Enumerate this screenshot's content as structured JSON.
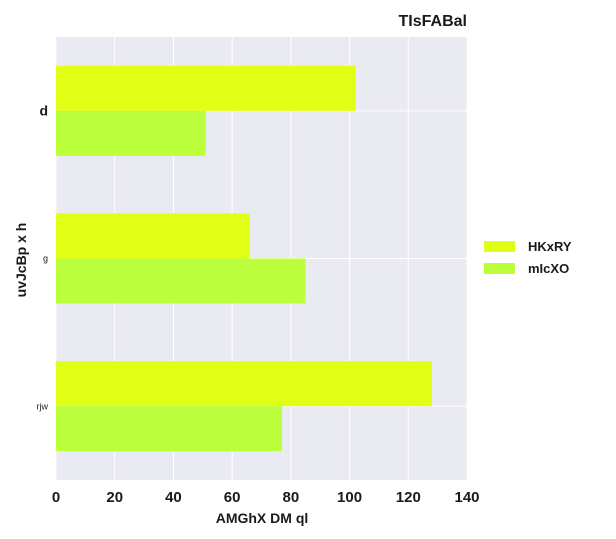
{
  "chart_data": {
    "type": "bar",
    "orientation": "horizontal",
    "title": "TIsFABal",
    "xlabel": "AMGhX DM  ql",
    "ylabel": "uvJcBp x h",
    "categories": [
      "d",
      "g",
      "rjw"
    ],
    "series": [
      {
        "name": "HKxRY",
        "values": [
          102,
          66,
          128
        ],
        "color": "#e0ff14"
      },
      {
        "name": "mIcXO",
        "values": [
          51,
          85,
          77
        ],
        "color": "#bbff3c"
      }
    ],
    "xlim": [
      0,
      140
    ],
    "xticks": [
      "0",
      "20",
      "40",
      "60",
      "80",
      "100",
      "120",
      "140"
    ],
    "grid": true,
    "legend_position": "right",
    "background": "#eaeaf2"
  }
}
